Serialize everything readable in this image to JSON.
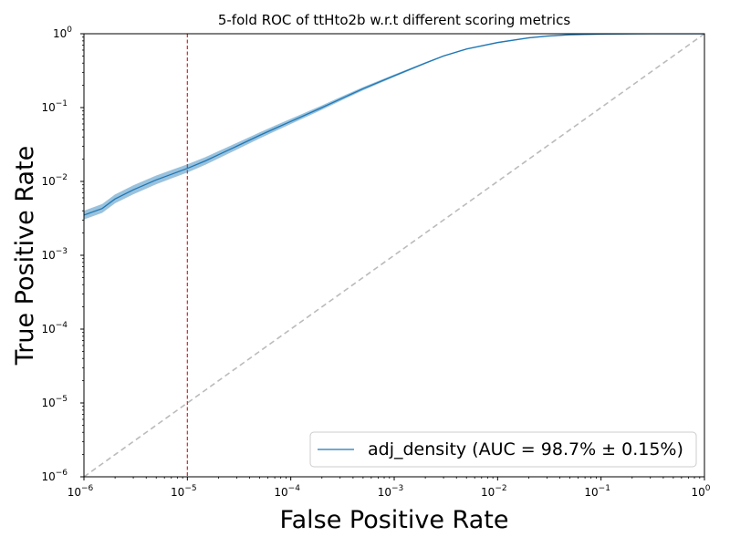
{
  "chart_data": {
    "type": "line",
    "title": "5-fold ROC of ttHto2b w.r.t different scoring metrics",
    "xlabel": "False Positive Rate",
    "ylabel": "True Positive Rate",
    "xscale": "log",
    "yscale": "log",
    "xlim": [
      1e-06,
      1
    ],
    "ylim": [
      1e-06,
      1
    ],
    "x_ticks": [
      {
        "value": 1e-06,
        "base": "10",
        "exp": "−6"
      },
      {
        "value": 1e-05,
        "base": "10",
        "exp": "−5"
      },
      {
        "value": 0.0001,
        "base": "10",
        "exp": "−4"
      },
      {
        "value": 0.001,
        "base": "10",
        "exp": "−3"
      },
      {
        "value": 0.01,
        "base": "10",
        "exp": "−2"
      },
      {
        "value": 0.1,
        "base": "10",
        "exp": "−1"
      },
      {
        "value": 1,
        "base": "10",
        "exp": "0"
      }
    ],
    "y_ticks": [
      {
        "value": 1e-06,
        "base": "10",
        "exp": "−6"
      },
      {
        "value": 1e-05,
        "base": "10",
        "exp": "−5"
      },
      {
        "value": 0.0001,
        "base": "10",
        "exp": "−4"
      },
      {
        "value": 0.001,
        "base": "10",
        "exp": "−3"
      },
      {
        "value": 0.01,
        "base": "10",
        "exp": "−2"
      },
      {
        "value": 0.1,
        "base": "10",
        "exp": "−1"
      },
      {
        "value": 1,
        "base": "10",
        "exp": "0"
      }
    ],
    "grid": false,
    "legend_position": "lower-right",
    "series": [
      {
        "name": "adj_density (AUC = 98.7% ± 0.15%)",
        "color": "#1f77b4",
        "band_color": "#1f77b4",
        "x": [
          1e-06,
          1.5e-06,
          2e-06,
          3e-06,
          5e-06,
          7e-06,
          1e-05,
          1.5e-05,
          2e-05,
          3e-05,
          5e-05,
          7e-05,
          0.0001,
          0.0002,
          0.0003,
          0.0005,
          0.001,
          0.002,
          0.003,
          0.005,
          0.01,
          0.02,
          0.03,
          0.05,
          0.1,
          0.2,
          0.3,
          0.5,
          1.0
        ],
        "y": [
          0.0035,
          0.0043,
          0.0058,
          0.0077,
          0.0105,
          0.0125,
          0.015,
          0.019,
          0.023,
          0.03,
          0.042,
          0.052,
          0.065,
          0.1,
          0.13,
          0.18,
          0.27,
          0.4,
          0.5,
          0.62,
          0.76,
          0.88,
          0.93,
          0.97,
          0.99,
          0.997,
          0.999,
          1.0,
          1.0
        ],
        "band_width": 0.06
      }
    ],
    "reference_lines": [
      {
        "kind": "diagonal",
        "name": "random",
        "color": "#bbbbbb",
        "style": "dashed"
      },
      {
        "kind": "vertical",
        "x": 1e-05,
        "color": "#d62728",
        "style": "dashed"
      }
    ]
  }
}
